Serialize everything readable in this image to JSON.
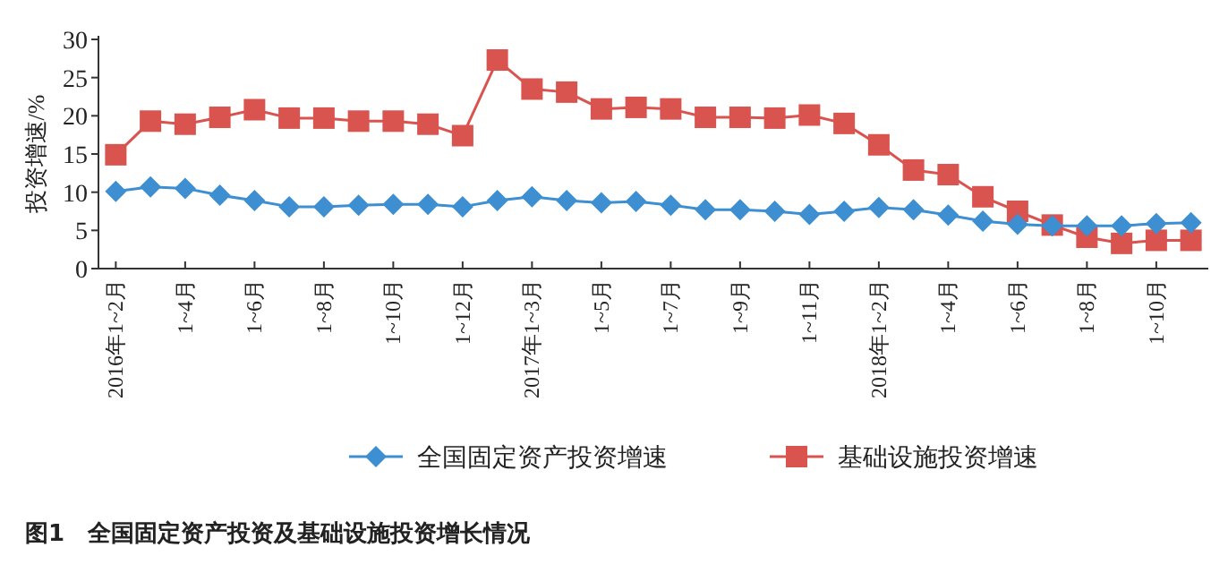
{
  "chart_data": {
    "type": "line",
    "ylabel": "投资增速/%",
    "categories": [
      "2016年1~2月",
      null,
      "1~4月",
      null,
      "1~6月",
      null,
      "1~8月",
      null,
      "1~10月",
      null,
      "1~12月",
      null,
      "2017年1~3月",
      null,
      "1~5月",
      null,
      "1~7月",
      null,
      "1~9月",
      null,
      "1~11月",
      null,
      "2018年1~2月",
      null,
      "1~4月",
      null,
      "1~6月",
      null,
      "1~8月",
      null,
      "1~10月",
      null
    ],
    "series": [
      {
        "name": "全国固定资产投资增速",
        "color": "#3d8fd1",
        "marker": "diamond",
        "values": [
          10.1,
          10.7,
          10.5,
          9.6,
          8.9,
          8.1,
          8.1,
          8.3,
          8.4,
          8.4,
          8.1,
          8.9,
          9.4,
          8.9,
          8.6,
          8.8,
          8.3,
          7.7,
          7.7,
          7.5,
          7.1,
          7.5,
          8.0,
          7.7,
          7.0,
          6.2,
          5.8,
          5.6,
          5.6,
          5.6,
          5.9,
          6.0
        ]
      },
      {
        "name": "基础设施投资增速",
        "color": "#d9534f",
        "marker": "square",
        "values": [
          14.9,
          19.3,
          18.9,
          19.8,
          20.8,
          19.7,
          19.7,
          19.3,
          19.3,
          18.9,
          17.4,
          27.3,
          23.5,
          23.1,
          20.9,
          21.1,
          20.9,
          19.8,
          19.8,
          19.7,
          20.1,
          19.0,
          16.2,
          12.9,
          12.3,
          9.4,
          7.5,
          5.7,
          4.1,
          3.3,
          3.7,
          3.7
        ]
      }
    ],
    "ylim": [
      0,
      30
    ],
    "yticks": [
      0,
      5,
      10,
      15,
      20,
      25,
      30
    ],
    "grid": false,
    "legend": "bottom",
    "annotations": [
      "图1　全国固定资产投资及基础设施投资增长情况"
    ]
  }
}
